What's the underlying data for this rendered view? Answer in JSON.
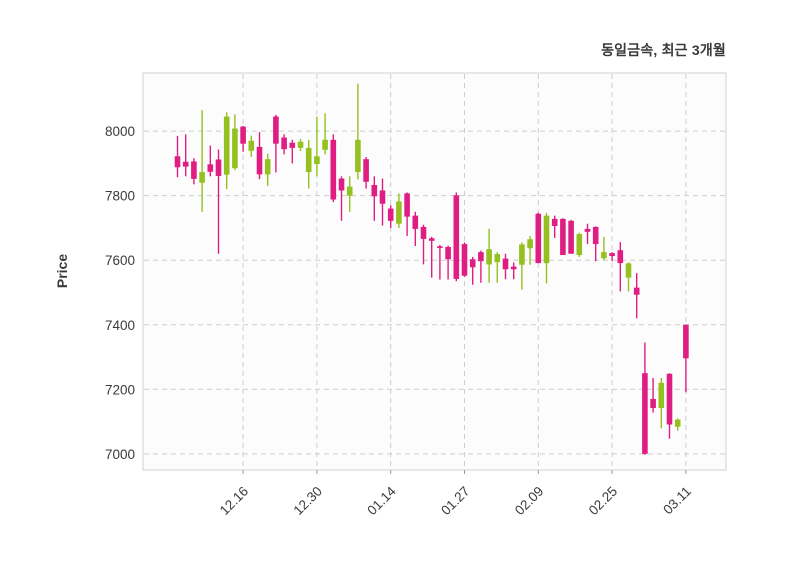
{
  "title": "동일금속, 최근 3개월",
  "ylabel": "Price",
  "colors": {
    "up": "#94c120",
    "down": "#e01d83",
    "grid": "#cdcdcd",
    "plot_border": "#d9d9d9",
    "plot_bg": "#fcfcfc",
    "text": "#3b3b3b"
  },
  "chart_data": {
    "type": "candlestick",
    "title": "동일금속, 최근 3개월",
    "ylabel": "Price",
    "xlabel": "",
    "grid": "dashed-both",
    "legend": "none",
    "ylim": [
      6950,
      8180
    ],
    "yticks": [
      7000,
      7200,
      7400,
      7600,
      7800,
      8000
    ],
    "xtick_labels": [
      "12.16",
      "12.30",
      "01.14",
      "01.27",
      "02.09",
      "02.25",
      "03.11"
    ],
    "xtick_indices": [
      8,
      17,
      26,
      35,
      44,
      53,
      62
    ],
    "ohlc_order": "open,high,low,close",
    "up_means": "close > open (green)",
    "down_means": "close < open (pink)",
    "candles": [
      [
        7922,
        7985,
        7857,
        7888
      ],
      [
        7905,
        7990,
        7860,
        7890
      ],
      [
        7906,
        7916,
        7835,
        7852
      ],
      [
        7840,
        8065,
        7750,
        7873
      ],
      [
        7897,
        7955,
        7860,
        7874
      ],
      [
        7912,
        7943,
        7620,
        7861
      ],
      [
        7865,
        8058,
        7820,
        8045
      ],
      [
        7885,
        8052,
        7879,
        8008
      ],
      [
        8014,
        8016,
        7936,
        7961
      ],
      [
        7939,
        7986,
        7920,
        7970
      ],
      [
        7951,
        7997,
        7851,
        7866
      ],
      [
        7866,
        7930,
        7830,
        7913
      ],
      [
        8045,
        8050,
        7872,
        7961
      ],
      [
        7980,
        7990,
        7928,
        7944
      ],
      [
        7964,
        7973,
        7900,
        7948
      ],
      [
        7948,
        7976,
        7938,
        7967
      ],
      [
        7873,
        7973,
        7822,
        7948
      ],
      [
        7898,
        8045,
        7860,
        7922
      ],
      [
        7942,
        8055,
        7928,
        7973
      ],
      [
        7973,
        7990,
        7780,
        7788
      ],
      [
        7853,
        7860,
        7722,
        7816
      ],
      [
        7800,
        7860,
        7750,
        7828
      ],
      [
        7873,
        8147,
        7850,
        7973
      ],
      [
        7913,
        7920,
        7822,
        7843
      ],
      [
        7833,
        7860,
        7722,
        7798
      ],
      [
        7816,
        7853,
        7707,
        7775
      ],
      [
        7760,
        7770,
        7700,
        7722
      ],
      [
        7713,
        7807,
        7700,
        7782
      ],
      [
        7807,
        7810,
        7675,
        7735
      ],
      [
        7738,
        7750,
        7644,
        7697
      ],
      [
        7703,
        7710,
        7587,
        7666
      ],
      [
        7668,
        7672,
        7546,
        7660
      ],
      [
        7643,
        7647,
        7540,
        7638
      ],
      [
        7641,
        7645,
        7540,
        7603
      ],
      [
        7801,
        7810,
        7535,
        7542
      ],
      [
        7650,
        7655,
        7548,
        7552
      ],
      [
        7603,
        7610,
        7524,
        7578
      ],
      [
        7625,
        7630,
        7530,
        7597
      ],
      [
        7587,
        7697,
        7530,
        7634
      ],
      [
        7594,
        7625,
        7530,
        7619
      ],
      [
        7605,
        7620,
        7541,
        7572
      ],
      [
        7580,
        7593,
        7541,
        7572
      ],
      [
        7586,
        7655,
        7509,
        7649
      ],
      [
        7637,
        7675,
        7586,
        7665
      ],
      [
        7744,
        7747,
        7591,
        7591
      ],
      [
        7591,
        7747,
        7528,
        7738
      ],
      [
        7728,
        7738,
        7669,
        7706
      ],
      [
        7728,
        7730,
        7616,
        7616
      ],
      [
        7722,
        7725,
        7620,
        7620
      ],
      [
        7616,
        7685,
        7610,
        7681
      ],
      [
        7697,
        7713,
        7650,
        7688
      ],
      [
        7703,
        7705,
        7597,
        7650
      ],
      [
        7606,
        7672,
        7600,
        7625
      ],
      [
        7622,
        7625,
        7597,
        7613
      ],
      [
        7631,
        7656,
        7503,
        7591
      ],
      [
        7546,
        7594,
        7503,
        7590
      ],
      [
        7515,
        7560,
        7420,
        7493
      ],
      [
        7250,
        7345,
        6997,
        7000
      ],
      [
        7170,
        7235,
        7128,
        7142
      ],
      [
        7142,
        7235,
        7079,
        7220
      ],
      [
        7248,
        7250,
        7047,
        7091
      ],
      [
        7084,
        7110,
        7072,
        7106
      ],
      [
        7400,
        7400,
        7191,
        7296
      ]
    ]
  }
}
